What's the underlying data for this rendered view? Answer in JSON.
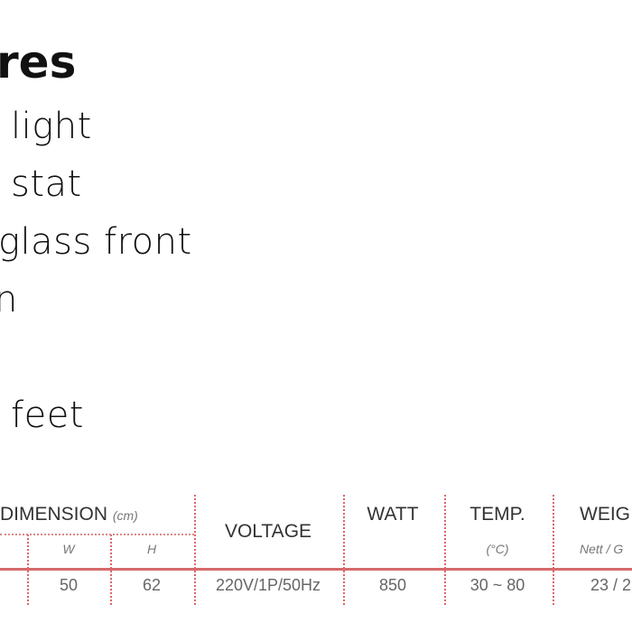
{
  "heading": "res",
  "features": [
    "light",
    "stat",
    "glass front",
    "n",
    "",
    "feet"
  ],
  "table": {
    "headers": {
      "dimension": "DIMENSION",
      "dimension_unit": "(cm)",
      "w": "W",
      "h": "H",
      "voltage": "VOLTAGE",
      "watt": "WATT",
      "temp": "TEMP.",
      "temp_unit": "(°C)",
      "weight": "WEIG",
      "weight_sub": "Nett / G"
    },
    "row": {
      "w": "50",
      "h": "62",
      "voltage": "220V/1P/50Hz",
      "watt": "850",
      "temp": "30 ~ 80",
      "weight": "23 / 2"
    },
    "accent": "#d56a6a"
  }
}
